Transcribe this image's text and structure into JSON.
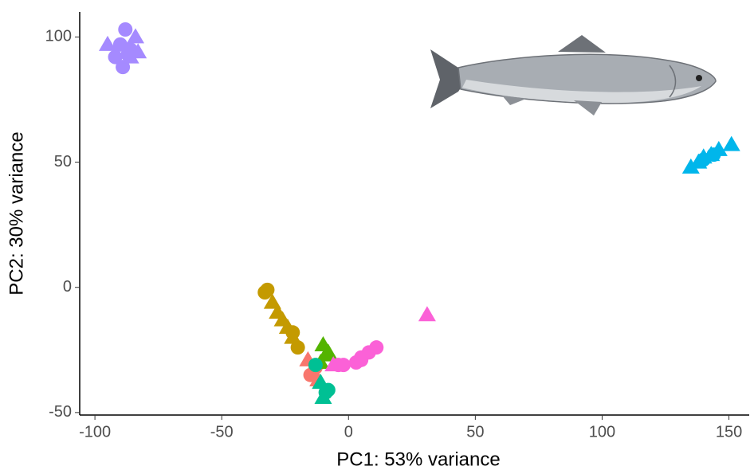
{
  "chart_data": {
    "type": "scatter",
    "x_label": "PC1: 53% variance",
    "y_label": "PC2: 30% variance",
    "xlim": [
      -106,
      158
    ],
    "ylim": [
      -51,
      110
    ],
    "xticks": [
      -100,
      -50,
      0,
      50,
      100,
      150
    ],
    "yticks": [
      -50,
      0,
      50,
      100
    ],
    "grid": false,
    "series": [
      {
        "color": "#A58AFF",
        "shape": "circle",
        "x": [
          -90,
          -88,
          -86,
          -92,
          -89,
          -87
        ],
        "values": [
          97,
          103,
          95,
          92,
          88,
          93
        ]
      },
      {
        "color": "#A58AFF",
        "shape": "triangle",
        "x": [
          -95,
          -84,
          -83,
          -86
        ],
        "values": [
          97,
          100,
          94,
          92
        ]
      },
      {
        "color": "#00B6EB",
        "shape": "triangle",
        "x": [
          135,
          138,
          140,
          143,
          146,
          151
        ],
        "values": [
          48,
          50,
          52,
          53,
          55,
          57
        ]
      },
      {
        "color": "#00B6EB",
        "shape": "circle",
        "x": [
          140,
          144
        ],
        "values": [
          51,
          53
        ]
      },
      {
        "color": "#C49A00",
        "shape": "circle",
        "x": [
          -33,
          -32,
          -20,
          -22
        ],
        "values": [
          -2,
          -1,
          -24,
          -18
        ]
      },
      {
        "color": "#C49A00",
        "shape": "triangle",
        "x": [
          -30,
          -28,
          -26,
          -24,
          -22
        ],
        "values": [
          -6,
          -10,
          -13,
          -16,
          -20
        ]
      },
      {
        "color": "#F8766D",
        "shape": "circle",
        "x": [
          -15,
          -13
        ],
        "values": [
          -35,
          -32
        ]
      },
      {
        "color": "#F8766D",
        "shape": "triangle",
        "x": [
          -16,
          -12
        ],
        "values": [
          -29,
          -37
        ]
      },
      {
        "color": "#53B400",
        "shape": "triangle",
        "x": [
          -10,
          -9,
          -11,
          -8
        ],
        "values": [
          -23,
          -27,
          -30,
          -26
        ]
      },
      {
        "color": "#00C094",
        "shape": "circle",
        "x": [
          -9,
          -13,
          -8
        ],
        "values": [
          -42,
          -31,
          -41
        ]
      },
      {
        "color": "#00C094",
        "shape": "triangle",
        "x": [
          -10,
          -11
        ],
        "values": [
          -44,
          -38
        ]
      },
      {
        "color": "#FB61D7",
        "shape": "circle",
        "x": [
          -4,
          3,
          5,
          8,
          11,
          5,
          -2
        ],
        "values": [
          -31,
          -30,
          -28,
          -26,
          -24,
          -29,
          -31
        ]
      },
      {
        "color": "#FB61D7",
        "shape": "triangle",
        "x": [
          31,
          -6
        ],
        "values": [
          -11,
          -31
        ]
      }
    ]
  }
}
